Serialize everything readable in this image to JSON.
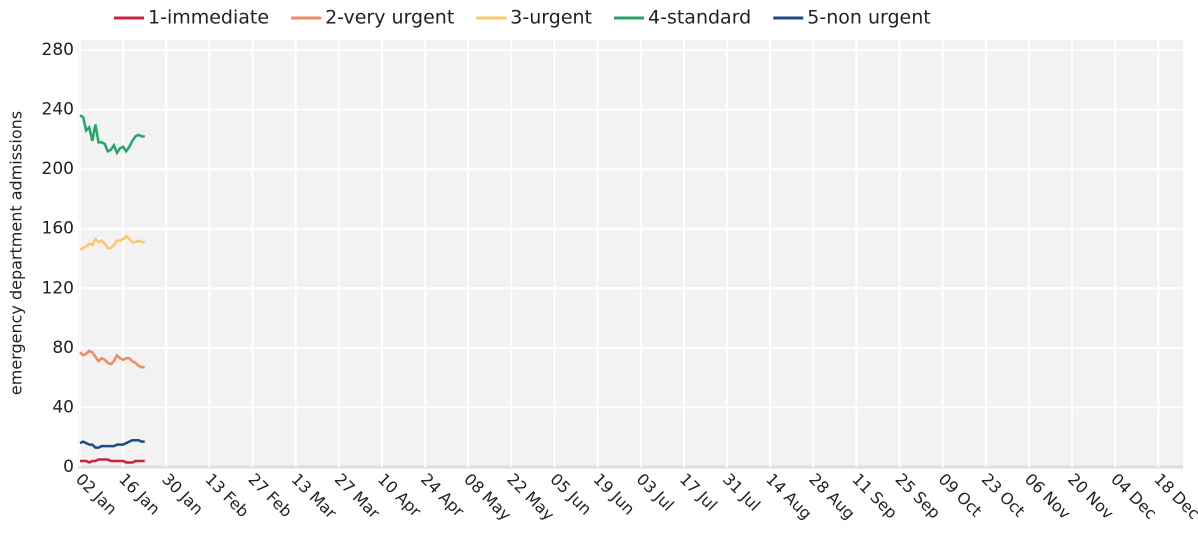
{
  "chart_data": {
    "type": "line",
    "y_label": "emergency department admissions",
    "x": [
      "02 Jan",
      "03 Jan",
      "04 Jan",
      "05 Jan",
      "06 Jan",
      "07 Jan",
      "08 Jan",
      "09 Jan",
      "10 Jan",
      "11 Jan",
      "12 Jan",
      "13 Jan",
      "14 Jan",
      "15 Jan",
      "16 Jan",
      "17 Jan",
      "18 Jan",
      "19 Jan",
      "20 Jan",
      "21 Jan",
      "22 Jan",
      "23 Jan"
    ],
    "series": [
      {
        "name": "1-immediate",
        "color": "#c8233f",
        "values": [
          4,
          4,
          4,
          3,
          4,
          4,
          5,
          5,
          5,
          5,
          4,
          4,
          4,
          4,
          4,
          3,
          3,
          3,
          4,
          4,
          4,
          4
        ]
      },
      {
        "name": "2-very urgent",
        "color": "#f08a65",
        "values": [
          77,
          75,
          76,
          78,
          77,
          74,
          71,
          73,
          72,
          70,
          69,
          71,
          75,
          73,
          72,
          73,
          73,
          71,
          70,
          68,
          67,
          67
        ]
      },
      {
        "name": "3-urgent",
        "color": "#fbc86b",
        "values": [
          146,
          147,
          148,
          150,
          149,
          153,
          151,
          152,
          150,
          147,
          147,
          149,
          152,
          152,
          153,
          155,
          153,
          151,
          151,
          152,
          151,
          151
        ]
      },
      {
        "name": "4-standard",
        "color": "#25a56a",
        "values": [
          236,
          235,
          226,
          228,
          219,
          230,
          218,
          218,
          217,
          212,
          213,
          216,
          211,
          214,
          215,
          212,
          215,
          219,
          222,
          223,
          222,
          222
        ]
      },
      {
        "name": "5-non urgent",
        "color": "#1c4a82",
        "values": [
          16,
          17,
          16,
          15,
          15,
          13,
          13,
          14,
          14,
          14,
          14,
          14,
          15,
          15,
          15,
          16,
          17,
          18,
          18,
          18,
          17,
          17
        ]
      }
    ],
    "xlim": [
      "02 Jan",
      "26 Dec"
    ],
    "xticks": [
      "02 Jan",
      "16 Jan",
      "30 Jan",
      "13 Feb",
      "27 Feb",
      "13 Mar",
      "27 Mar",
      "10 Apr",
      "24 Apr",
      "08 May",
      "22 May",
      "05 Jun",
      "19 Jun",
      "03 Jul",
      "17 Jul",
      "31 Jul",
      "14 Aug",
      "28 Aug",
      "11 Sep",
      "25 Sep",
      "09 Oct",
      "23 Oct",
      "06 Nov",
      "20 Nov",
      "04 Dec",
      "18 Dec"
    ],
    "ylim": [
      0,
      280
    ],
    "yticks": [
      0,
      40,
      80,
      120,
      160,
      200,
      240,
      280
    ],
    "grid": true
  }
}
